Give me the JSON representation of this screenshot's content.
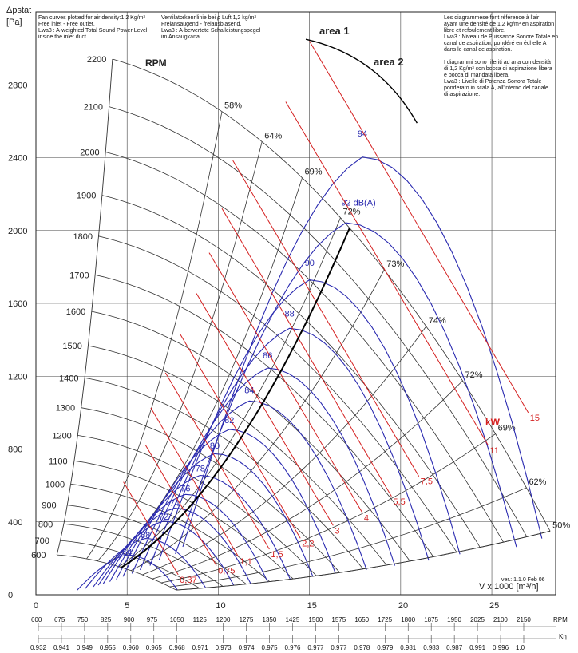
{
  "header": {
    "y_axis_title_line1": "Δpstat",
    "y_axis_title_line2": "[Pa]",
    "x_axis_title": "V x 1000 [m³/h]",
    "version": "ver.: 1.1.0 Feb 06",
    "area1": "area 1",
    "area2": "area 2",
    "rpm_label": "RPM",
    "kw_label": "kW"
  },
  "notes": {
    "en": [
      "Fan curves plotted for air density:1,2 Kg/m³",
      "Free inlet - Free outlet.",
      "Lwa3 : A-weighted Total Sound Power Level",
      "inside the inlet duct."
    ],
    "de": [
      "Ventilatorkennlinie bei ρ Luft:1,2 kg/m³",
      "Freiansaugend - freiausblasend.",
      "Lwa3 : A-bewertete Schalleistungspegel",
      "im Ansaugkanal."
    ],
    "fr_it": [
      "Les diagrammese font référence à l'air",
      "ayant une densité de 1,2 kg/m³ en aspiration",
      "libre et refoulement libre.",
      "Lwa3 : Niveau de Puissance Sonore Totale en",
      "canal de aspiration, pondéré en échelle A",
      "dans le canal de aspiration.",
      "",
      "I diagrammi sono riferiti ad aria con densità",
      "di 1,2 Kg/m³ con bocca di aspirazione libera",
      "e bocca di mandata libera.",
      "Lwa3 : Livello di Potenza Sonora Totale",
      "ponderato in scala A, all'interno del canale",
      "di aspirazione."
    ]
  },
  "chart_data": {
    "type": "line",
    "xlabel": "V x 1000 [m³/h]",
    "ylabel": "Δpstat [Pa]",
    "xlim": [
      0,
      28.5
    ],
    "ylim": [
      0,
      3200
    ],
    "x_ticks": [
      0,
      5,
      10,
      15,
      20,
      25
    ],
    "y_ticks": [
      0,
      400,
      800,
      1200,
      1600,
      2000,
      2400,
      2800
    ],
    "grid": true,
    "rpm_curves": [
      {
        "label": "600",
        "rpm": 600
      },
      {
        "label": "700",
        "rpm": 700
      },
      {
        "label": "800",
        "rpm": 800
      },
      {
        "label": "900",
        "rpm": 900
      },
      {
        "label": "1000",
        "rpm": 1000
      },
      {
        "label": "1100",
        "rpm": 1100
      },
      {
        "label": "1200",
        "rpm": 1200
      },
      {
        "label": "1300",
        "rpm": 1300
      },
      {
        "label": "1400",
        "rpm": 1400
      },
      {
        "label": "1500",
        "rpm": 1500
      },
      {
        "label": "1600",
        "rpm": 1600
      },
      {
        "label": "1700",
        "rpm": 1700
      },
      {
        "label": "1800",
        "rpm": 1800
      },
      {
        "label": "1900",
        "rpm": 1900
      },
      {
        "label": "2000",
        "rpm": 2000
      },
      {
        "label": "2100",
        "rpm": 2100
      },
      {
        "label": "2200",
        "rpm": 2200
      }
    ],
    "efficiency_lines": [
      {
        "label": "58%",
        "q2200": 10.2
      },
      {
        "label": "64%",
        "q2200": 12.4
      },
      {
        "label": "69%",
        "q2200": 14.6
      },
      {
        "label": "72%",
        "q2200": 16.7
      },
      {
        "label": "73%",
        "q2200": 19.1
      },
      {
        "label": "74%",
        "q2200": 21.4
      },
      {
        "label": "72%",
        "q2200": 23.4
      },
      {
        "label": "69%",
        "q2200": 25.2
      },
      {
        "label": "62%",
        "q2200": 26.9
      },
      {
        "label": "50%",
        "q2200": 28.2
      }
    ],
    "sound_levels_dBA": [
      {
        "label": "64",
        "x": 5.0,
        "y": 230
      },
      {
        "label": "68",
        "x": 6.0,
        "y": 325
      },
      {
        "label": "72",
        "x": 7.0,
        "y": 425
      },
      {
        "label": "74",
        "x": 7.6,
        "y": 500
      },
      {
        "label": "76",
        "x": 8.2,
        "y": 580
      },
      {
        "label": "78",
        "x": 9.0,
        "y": 690
      },
      {
        "label": "80",
        "x": 9.8,
        "y": 815
      },
      {
        "label": "82",
        "x": 10.6,
        "y": 955
      },
      {
        "label": "84",
        "x": 11.7,
        "y": 1120
      },
      {
        "label": "86",
        "x": 12.7,
        "y": 1310
      },
      {
        "label": "88",
        "x": 13.9,
        "y": 1540
      },
      {
        "label": "90",
        "x": 15.0,
        "y": 1820
      },
      {
        "label": "92 dB(A)",
        "x": 17.0,
        "y": 2150
      },
      {
        "label": "94",
        "x": 17.9,
        "y": 2530
      }
    ],
    "power_kW": [
      {
        "label": "0,37",
        "x": 7.8,
        "y": 110
      },
      {
        "label": "0,75",
        "x": 9.9,
        "y": 160
      },
      {
        "label": "1,1",
        "x": 11.1,
        "y": 210
      },
      {
        "label": "1,5",
        "x": 12.8,
        "y": 250
      },
      {
        "label": "2,2",
        "x": 14.5,
        "y": 310
      },
      {
        "label": "3",
        "x": 16.3,
        "y": 380
      },
      {
        "label": "4",
        "x": 17.9,
        "y": 450
      },
      {
        "label": "5,5",
        "x": 19.5,
        "y": 540
      },
      {
        "label": "7,5",
        "x": 21.0,
        "y": 650
      },
      {
        "label": "11",
        "x": 24.8,
        "y": 820
      },
      {
        "label": "15",
        "x": 27.0,
        "y": 1000
      }
    ],
    "rpm_scale": [
      "600",
      "675",
      "750",
      "825",
      "900",
      "975",
      "1050",
      "1125",
      "1200",
      "1275",
      "1350",
      "1425",
      "1500",
      "1575",
      "1650",
      "1725",
      "1800",
      "1875",
      "1950",
      "2025",
      "2100",
      "2150"
    ],
    "rpm_scale_unit": "RPM",
    "k_eta_scale": [
      "0.932",
      "0.941",
      "0.949",
      "0.955",
      "0.960",
      "0.965",
      "0.968",
      "0.971",
      "0.973",
      "0.974",
      "0.975",
      "0.976",
      "0.977",
      "0.977",
      "0.978",
      "0.979",
      "0.981",
      "0.983",
      "0.987",
      "0.991",
      "0.996",
      "1.0"
    ],
    "k_eta_unit": "Kη"
  }
}
